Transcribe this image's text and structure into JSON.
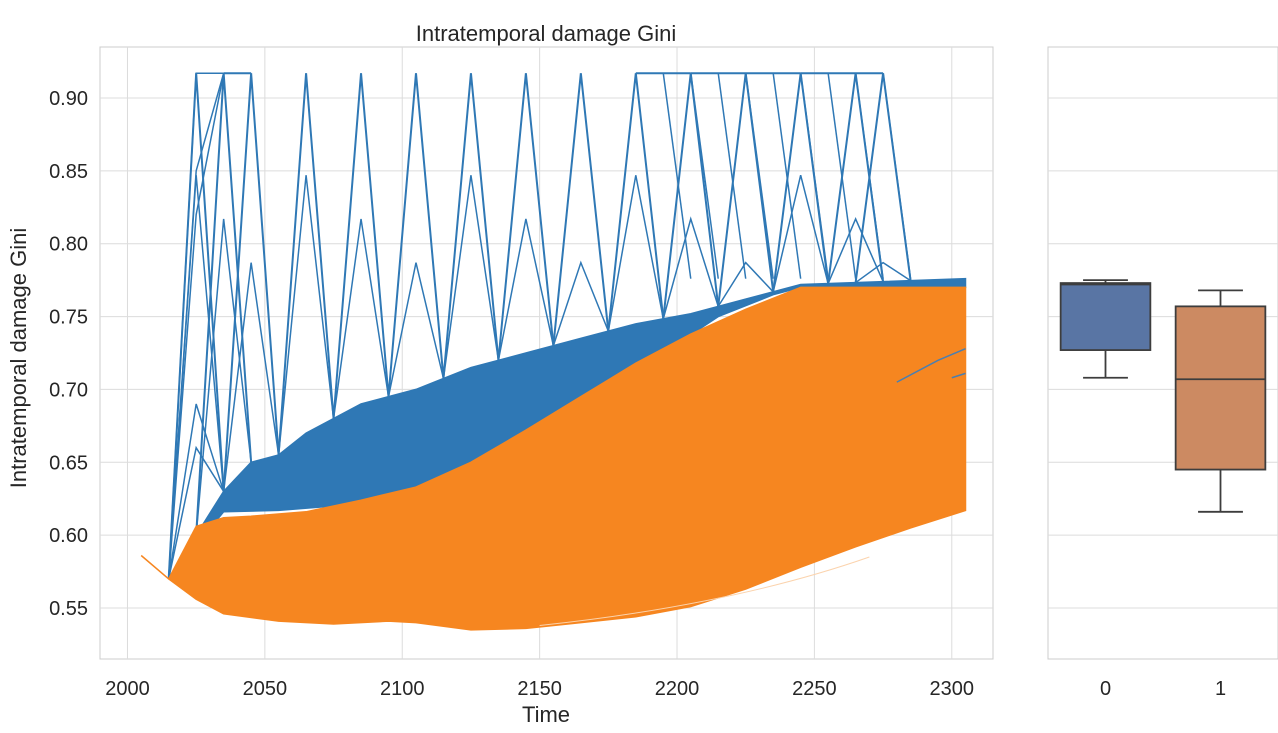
{
  "chart_data": [
    {
      "type": "line",
      "title": "Intratemporal damage Gini",
      "xlabel": "Time",
      "ylabel": "Intratemporal damage Gini",
      "xlim": [
        1990,
        2315
      ],
      "ylim": [
        0.515,
        0.935
      ],
      "xticks": [
        2000,
        2050,
        2100,
        2150,
        2200,
        2250,
        2300
      ],
      "yticks": [
        0.55,
        0.6,
        0.65,
        0.7,
        0.75,
        0.8,
        0.85,
        0.9
      ],
      "grid": true,
      "colors": {
        "group0": "#2f78b5",
        "group1": "#f68620"
      },
      "series": [
        {
          "group": 0,
          "values": "blue band of many trajectories",
          "band_upper": [
            [
              2015,
              0.57
            ],
            [
              2035,
              0.63
            ],
            [
              2045,
              0.65
            ],
            [
              2055,
              0.655
            ],
            [
              2065,
              0.67
            ],
            [
              2085,
              0.69
            ],
            [
              2105,
              0.7
            ],
            [
              2125,
              0.715
            ],
            [
              2145,
              0.725
            ],
            [
              2165,
              0.735
            ],
            [
              2185,
              0.745
            ],
            [
              2205,
              0.752
            ],
            [
              2225,
              0.762
            ],
            [
              2245,
              0.772
            ],
            [
              2305,
              0.776
            ]
          ],
          "band_lower": [
            [
              2015,
              0.57
            ],
            [
              2035,
              0.616
            ],
            [
              2055,
              0.617
            ],
            [
              2075,
              0.62
            ],
            [
              2095,
              0.625
            ],
            [
              2115,
              0.632
            ],
            [
              2135,
              0.645
            ],
            [
              2155,
              0.67
            ],
            [
              2175,
              0.695
            ],
            [
              2195,
              0.725
            ],
            [
              2215,
              0.75
            ],
            [
              2235,
              0.765
            ],
            [
              2245,
              0.77
            ],
            [
              2305,
              0.77
            ]
          ],
          "spike_years": [
            2025,
            2035,
            2045,
            2065,
            2085,
            2105,
            2125,
            2145,
            2165,
            2185,
            2205,
            2225,
            2245,
            2265,
            2275
          ],
          "spike_peak": 0.917
        },
        {
          "group": 1,
          "values": "orange band of many trajectories",
          "band_upper": [
            [
              2005,
              0.586
            ],
            [
              2015,
              0.57
            ],
            [
              2025,
              0.606
            ],
            [
              2035,
              0.612
            ],
            [
              2045,
              0.613
            ],
            [
              2065,
              0.616
            ],
            [
              2085,
              0.624
            ],
            [
              2105,
              0.633
            ],
            [
              2125,
              0.65
            ],
            [
              2145,
              0.672
            ],
            [
              2165,
              0.695
            ],
            [
              2185,
              0.718
            ],
            [
              2205,
              0.738
            ],
            [
              2225,
              0.755
            ],
            [
              2245,
              0.77
            ],
            [
              2305,
              0.77
            ]
          ],
          "band_lower": [
            [
              2005,
              0.586
            ],
            [
              2015,
              0.57
            ],
            [
              2025,
              0.556
            ],
            [
              2035,
              0.546
            ],
            [
              2055,
              0.541
            ],
            [
              2075,
              0.539
            ],
            [
              2095,
              0.541
            ],
            [
              2105,
              0.54
            ],
            [
              2125,
              0.535
            ],
            [
              2145,
              0.536
            ],
            [
              2165,
              0.54
            ],
            [
              2185,
              0.544
            ],
            [
              2205,
              0.551
            ],
            [
              2225,
              0.563
            ],
            [
              2245,
              0.578
            ],
            [
              2265,
              0.592
            ],
            [
              2285,
              0.605
            ],
            [
              2305,
              0.617
            ]
          ]
        }
      ]
    },
    {
      "type": "box",
      "categories": [
        "0",
        "1"
      ],
      "ylim": [
        0.515,
        0.935
      ],
      "grid": true,
      "boxes": [
        {
          "name": "0",
          "color": "#5975a4",
          "whislo": 0.708,
          "q1": 0.727,
          "median": 0.772,
          "q3": 0.773,
          "whishi": 0.775
        },
        {
          "name": "1",
          "color": "#cc8a62",
          "whislo": 0.616,
          "q1": 0.645,
          "median": 0.707,
          "q3": 0.757,
          "whishi": 0.768
        }
      ]
    }
  ]
}
